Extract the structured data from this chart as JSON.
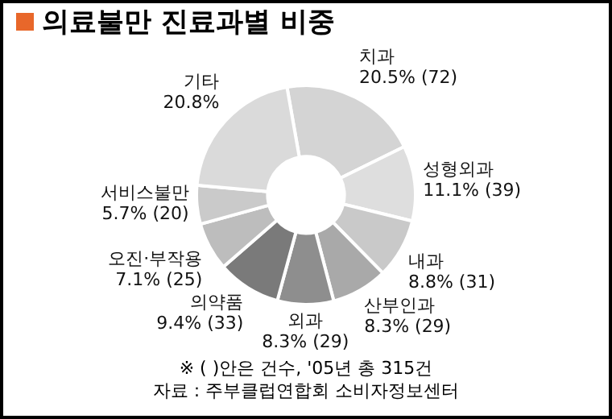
{
  "chart_data": {
    "type": "donut",
    "title": "의료불만 진료과별 비중",
    "categories": [
      "치과",
      "성형외과",
      "내과",
      "산부인과",
      "외과",
      "의약품",
      "오진·부작용",
      "서비스불만",
      "기타"
    ],
    "values": [
      20.5,
      11.1,
      8.8,
      8.3,
      8.3,
      9.4,
      7.1,
      5.7,
      20.8
    ],
    "colors": [
      "#d4d4d4",
      "#dedede",
      "#c9c9c9",
      "#a9a9a9",
      "#8e8e8e",
      "#7a7a7a",
      "#bdbdbd",
      "#cacaca",
      "#dadada"
    ],
    "value_labels": [
      "20.5% (72)",
      "11.1% (39)",
      "8.8% (31)",
      "8.3% (29)",
      "8.3% (29)",
      "9.4% (33)",
      "7.1% (25)",
      "5.7% (20)",
      "20.8%"
    ],
    "annotations": [
      "※ ( )안은 건수, '05년 총 315건",
      "자료 : 주부클럽연합회 소비자정보센터"
    ]
  }
}
